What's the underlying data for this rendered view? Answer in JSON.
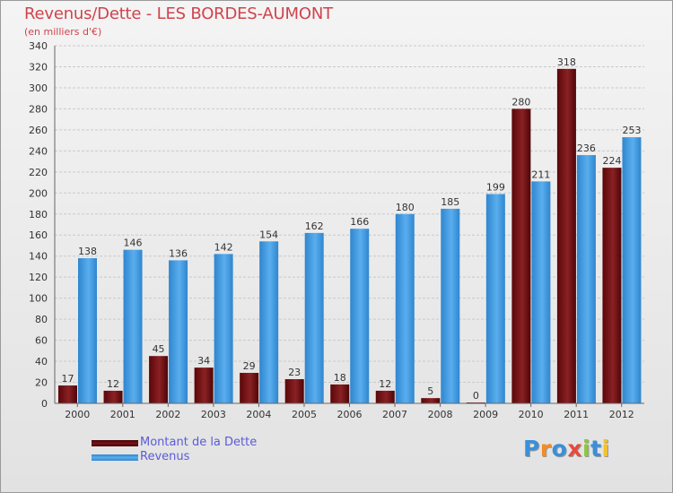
{
  "header": {
    "title": "Revenus/Dette - LES BORDES-AUMONT",
    "subtitle": "(en milliers d'€)"
  },
  "legend": {
    "items": [
      {
        "label": "Montant de la Dette",
        "color": "#6a0b0e"
      },
      {
        "label": "Revenus",
        "color": "#4a9fe0"
      }
    ]
  },
  "logo": {
    "text": "Proxiti",
    "letters": [
      {
        "char": "P",
        "color": "#3b8fd8"
      },
      {
        "char": "r",
        "color": "#f28c28"
      },
      {
        "char": "o",
        "color": "#3b8fd8"
      },
      {
        "char": "x",
        "color": "#e84a3c"
      },
      {
        "char": "i",
        "color": "#8cc63f"
      },
      {
        "char": "t",
        "color": "#3b8fd8"
      },
      {
        "char": "i",
        "color": "#f2c12e"
      }
    ]
  },
  "chart_data": {
    "type": "bar",
    "title": "Revenus/Dette - LES BORDES-AUMONT",
    "subtitle": "(en milliers d'€)",
    "categories": [
      "2000",
      "2001",
      "2002",
      "2003",
      "2004",
      "2005",
      "2006",
      "2007",
      "2008",
      "2009",
      "2010",
      "2011",
      "2012"
    ],
    "series": [
      {
        "name": "Montant de la Dette",
        "color": "#7a1215",
        "values": [
          17,
          12,
          45,
          34,
          29,
          23,
          18,
          12,
          5,
          0,
          280,
          318,
          224
        ]
      },
      {
        "name": "Revenus",
        "color": "#4ea3e4",
        "values": [
          138,
          146,
          136,
          142,
          154,
          162,
          166,
          180,
          185,
          199,
          211,
          236,
          253
        ]
      }
    ],
    "ylim": [
      0,
      340
    ],
    "yticks": [
      0,
      20,
      40,
      60,
      80,
      100,
      120,
      140,
      160,
      180,
      200,
      220,
      240,
      260,
      280,
      300,
      320,
      340
    ],
    "grid": true,
    "legend_position": "bottom-left"
  }
}
